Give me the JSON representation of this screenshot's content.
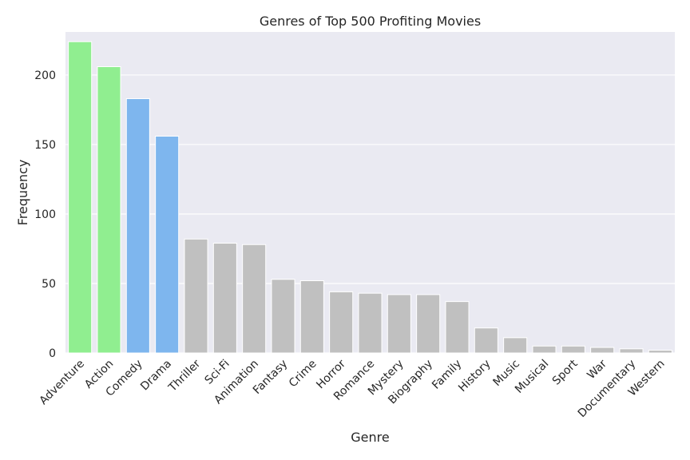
{
  "chart_data": {
    "type": "bar",
    "title": "Genres of Top 500 Profiting Movies",
    "xlabel": "Genre",
    "ylabel": "Frequency",
    "ylim": [
      0,
      231
    ],
    "yticks": [
      0,
      50,
      100,
      150,
      200
    ],
    "grid": true,
    "categories": [
      "Adventure",
      "Action",
      "Comedy",
      "Drama",
      "Thriller",
      "Sci-Fi",
      "Animation",
      "Fantasy",
      "Crime",
      "Horror",
      "Romance",
      "Mystery",
      "Biography",
      "Family",
      "History",
      "Music",
      "Musical",
      "Sport",
      "War",
      "Documentary",
      "Western"
    ],
    "values": [
      224,
      206,
      183,
      156,
      82,
      79,
      78,
      53,
      52,
      44,
      43,
      42,
      42,
      37,
      18,
      11,
      5,
      5,
      4,
      3,
      2
    ],
    "colors": [
      "#90ee90",
      "#90ee90",
      "#7eb6ee",
      "#7eb6ee",
      "#c0c0c0",
      "#c0c0c0",
      "#c0c0c0",
      "#c0c0c0",
      "#c0c0c0",
      "#c0c0c0",
      "#c0c0c0",
      "#c0c0c0",
      "#c0c0c0",
      "#c0c0c0",
      "#c0c0c0",
      "#c0c0c0",
      "#c0c0c0",
      "#c0c0c0",
      "#c0c0c0",
      "#c0c0c0",
      "#c0c0c0"
    ],
    "background_color": "#eaeaf2",
    "grid_color": "#ffffff"
  }
}
